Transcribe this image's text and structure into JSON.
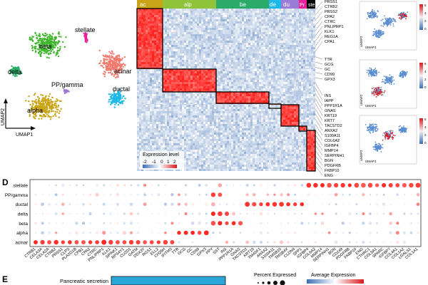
{
  "panel_letters": {
    "d": "D",
    "e": "E"
  },
  "umap": {
    "xlabel": "UMAP1",
    "ylabel": "UMAP2",
    "clusters": [
      {
        "label": "stellate",
        "color": "#e8209a"
      },
      {
        "label": "acinar",
        "color": "#f07a6e"
      },
      {
        "label": "beta",
        "color": "#3fb72c"
      },
      {
        "label": "delta",
        "color": "#2aab6a"
      },
      {
        "label": "PP/gamma",
        "color": "#9b7ad8"
      },
      {
        "label": "ductal",
        "color": "#1eb8e8"
      },
      {
        "label": "alpha",
        "color": "#c8a416"
      }
    ]
  },
  "heatmap": {
    "column_groups": [
      {
        "label": "ac",
        "color": "#e0463c"
      },
      {
        "label": "alp",
        "color": "#c8a416"
      },
      {
        "label": "be",
        "color": "#8fc33a"
      },
      {
        "label": "de",
        "color": "#2aab6a"
      },
      {
        "label": "du",
        "color": "#1eb8e8"
      },
      {
        "label": "Pr",
        "color": "#9b7ad8"
      },
      {
        "label": "ste",
        "color": "#e8209a"
      }
    ],
    "genes": [
      "PRSS1",
      "CTRB2",
      "PRSS2",
      "CPA2",
      "CTRC",
      "PNLIPRP1",
      "KLK1",
      "REG1A",
      "CPA1",
      "TTR",
      "GCG",
      "GC",
      "CD99",
      "GPX3",
      "INS",
      "IAPP",
      "PPP1R1A",
      "GNAS",
      "KRT19",
      "KRT7",
      "TACSTD2",
      "ANXA2",
      "S100A11",
      "COL6A2",
      "IGFBP4",
      "MMP14",
      "SERPINH1",
      "BGN",
      "PDGFRB",
      "FKBP10",
      "ENG"
    ],
    "legend": {
      "title": "Expression level",
      "ticks": [
        "-2",
        "-1",
        "0",
        "1",
        "2"
      ]
    }
  },
  "feature_plots": [
    {
      "xlabel": "UMAP1",
      "ylabel": "UMAP2",
      "scale": [
        "0",
        "2",
        "4",
        "6"
      ]
    },
    {
      "xlabel": "UMAP1",
      "ylabel": "UMAP2",
      "scale": [
        "0",
        "2",
        "4",
        "6"
      ]
    },
    {
      "xlabel": "UMAP1",
      "ylabel": "UMAP2",
      "scale": [
        "0",
        "2",
        "4",
        "6"
      ]
    }
  ],
  "dotplot": {
    "rows": [
      "stellate",
      "PP/gamma",
      "ductal",
      "delta",
      "beta",
      "alpha",
      "acinar"
    ],
    "genes": [
      "CTRB1",
      "CELA3A",
      "CELA2A",
      "CTRB2",
      "PRSS1",
      "CLPS",
      "PLA2G1B",
      "CPB1",
      "CPA2",
      "CTRC",
      "PNLIPRP1",
      "KLK1",
      "SPINK1",
      "RPS4Y1",
      "CUZD1",
      "GATM",
      "DDX3Y",
      "RGS1",
      "ELL2",
      "CH25H",
      "IFITM3",
      "TTR",
      "GCG",
      "GC",
      "CD99",
      "GPX3",
      "PPY",
      "SST",
      "INS",
      "PPP1R1A",
      "GNAS",
      "TACSTD2",
      "KRT19",
      "TM4SF1",
      "ANXA2",
      "S100A11",
      "TMSB10",
      "TMSB4X",
      "CLDN4",
      "SPP1",
      "IGFBP4",
      "COL6A2",
      "MMP14",
      "SERPINH1",
      "BGN",
      "CD248",
      "PDGFRB",
      "FKBP10",
      "ENG",
      "CTHRC1",
      "COL5A1",
      "SPARC",
      "IGFBP7",
      "COL4A1",
      "COL1A2",
      "LGALS1",
      "COL1A1"
    ],
    "legend": {
      "size_title": "Percent Expressed",
      "color_title": "Average Expression"
    }
  },
  "bar_panel": {
    "bars": [
      {
        "label": "Pancreatic secretion",
        "color": "#2aa6d8"
      }
    ]
  }
}
